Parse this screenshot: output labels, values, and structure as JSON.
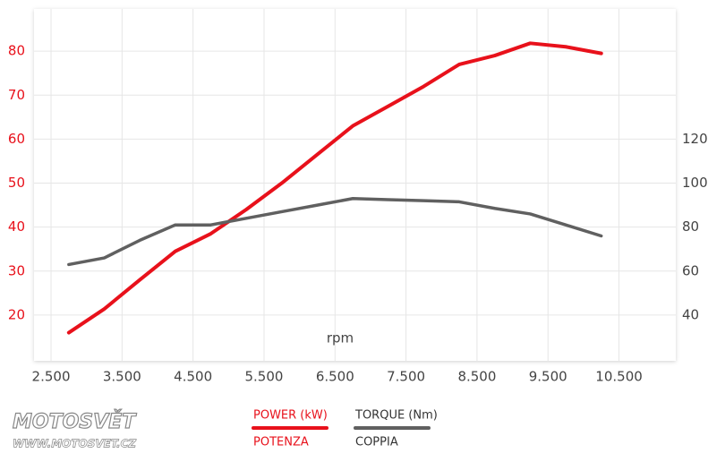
{
  "chart_data": {
    "type": "line",
    "x_label": "rpm",
    "x": [
      2750,
      3250,
      3750,
      4250,
      4750,
      5250,
      5750,
      6250,
      6750,
      7250,
      7750,
      8250,
      8750,
      9250,
      9750,
      10250
    ],
    "xlim": [
      2260,
      11300
    ],
    "xticks": [
      {
        "value": 2500,
        "label": "2.500"
      },
      {
        "value": 3500,
        "label": "3.500"
      },
      {
        "value": 4500,
        "label": "4.500"
      },
      {
        "value": 5500,
        "label": "5.500"
      },
      {
        "value": 6500,
        "label": "6.500"
      },
      {
        "value": 7500,
        "label": "7.500"
      },
      {
        "value": 8500,
        "label": "8.500"
      },
      {
        "value": 9500,
        "label": "9.500"
      },
      {
        "value": 10500,
        "label": "10.500"
      }
    ],
    "ylim": [
      9.6,
      89.6
    ],
    "yticks": [
      20,
      30,
      40,
      50,
      60,
      70,
      80
    ],
    "y2lim": [
      19.2,
      179.2
    ],
    "y2ticks": [
      40,
      60,
      80,
      100,
      120
    ],
    "grid": true,
    "series": [
      {
        "name": "POWER (kW)",
        "alt_name": "POTENZA",
        "color": "#e8111b",
        "values": [
          16,
          21.4,
          28,
          34.5,
          38.5,
          44,
          50,
          56.5,
          63,
          67.5,
          72,
          77,
          79,
          81.8,
          81,
          79.5
        ]
      },
      {
        "name": "TORQUE (Nm)",
        "alt_name": "COPPIA",
        "color": "#606060",
        "axis": "y2",
        "values": [
          63,
          66,
          74,
          81,
          81,
          84,
          87,
          90,
          93,
          92.5,
          92,
          91.5,
          88.5,
          86,
          81,
          76
        ]
      }
    ]
  },
  "watermark": {
    "brand": "MOTOSVĚT",
    "url": "WWW.MOTOSVET.CZ"
  }
}
